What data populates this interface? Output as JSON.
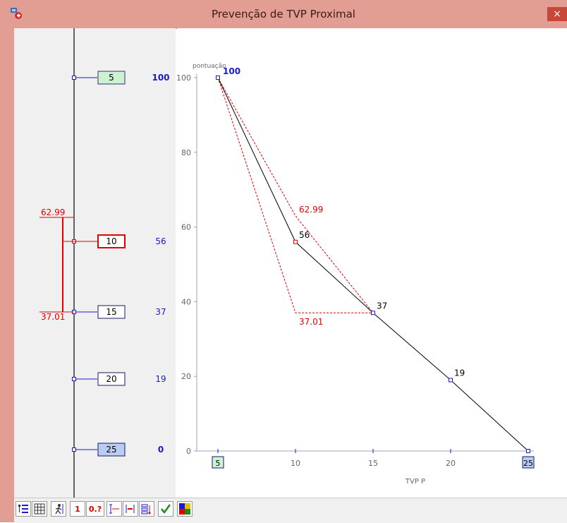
{
  "window": {
    "title": "Prevenção de TVP Proximal",
    "close_label": "×"
  },
  "nomogram": {
    "rows": [
      {
        "value": "5",
        "score": "100",
        "box_fill": "#ccf2d4",
        "box_stroke": "#333366",
        "score_bold": true
      },
      {
        "value": "10",
        "score": "56",
        "box_fill": "#ffffff",
        "box_stroke": "#e00000",
        "score_bold": false,
        "selected": true
      },
      {
        "value": "15",
        "score": "37",
        "box_fill": "#ffffff",
        "box_stroke": "#1a1a66",
        "score_bold": false
      },
      {
        "value": "20",
        "score": "19",
        "box_fill": "#ffffff",
        "box_stroke": "#1a1a66",
        "score_bold": false
      },
      {
        "value": "25",
        "score": "0",
        "box_fill": "#b9cdf2",
        "box_stroke": "#1a1a66",
        "score_bold": true
      }
    ],
    "ci": {
      "upper": "62.99",
      "lower": "37.01"
    }
  },
  "chart_data": {
    "type": "line",
    "ylabel": "pontuação",
    "xlabel": "TVP P",
    "xlim": [
      5,
      25
    ],
    "ylim": [
      0,
      100
    ],
    "x_ticks": [
      "5",
      "10",
      "15",
      "20",
      "25"
    ],
    "y_ticks": [
      "0",
      "20",
      "40",
      "60",
      "80",
      "100"
    ],
    "series": [
      {
        "x": [
          5,
          10,
          15,
          20,
          25
        ],
        "y": [
          100,
          56,
          37,
          19,
          0
        ],
        "labels": [
          "100",
          "56",
          "37",
          "19",
          ""
        ]
      }
    ],
    "ci_upper": {
      "x": [
        5,
        10,
        15
      ],
      "y": [
        100,
        62.99,
        37
      ],
      "label": "62.99"
    },
    "ci_lower": {
      "x": [
        5,
        10,
        15
      ],
      "y": [
        100,
        37.01,
        37
      ],
      "label": "37.01"
    },
    "colors": {
      "line": "#000000",
      "ci": "#e00000",
      "marker": "#1a1acc",
      "axis": "#9aa3c4",
      "tick_text": "#666666"
    }
  },
  "toolbar": {
    "buttons": [
      {
        "name": "tree-list-icon",
        "label": ""
      },
      {
        "name": "grid-icon",
        "label": ""
      },
      {
        "name": "walking-person-icon",
        "label": ""
      },
      {
        "name": "value-one-button",
        "label": "1"
      },
      {
        "name": "value-unknown-button",
        "label": "0.?"
      },
      {
        "name": "error-bars-icon",
        "label": ""
      },
      {
        "name": "ci-bars-icon",
        "label": ""
      },
      {
        "name": "chart-settings-icon",
        "label": ""
      },
      {
        "name": "checkmark-icon",
        "label": ""
      },
      {
        "name": "color-palette-icon",
        "label": ""
      }
    ]
  }
}
